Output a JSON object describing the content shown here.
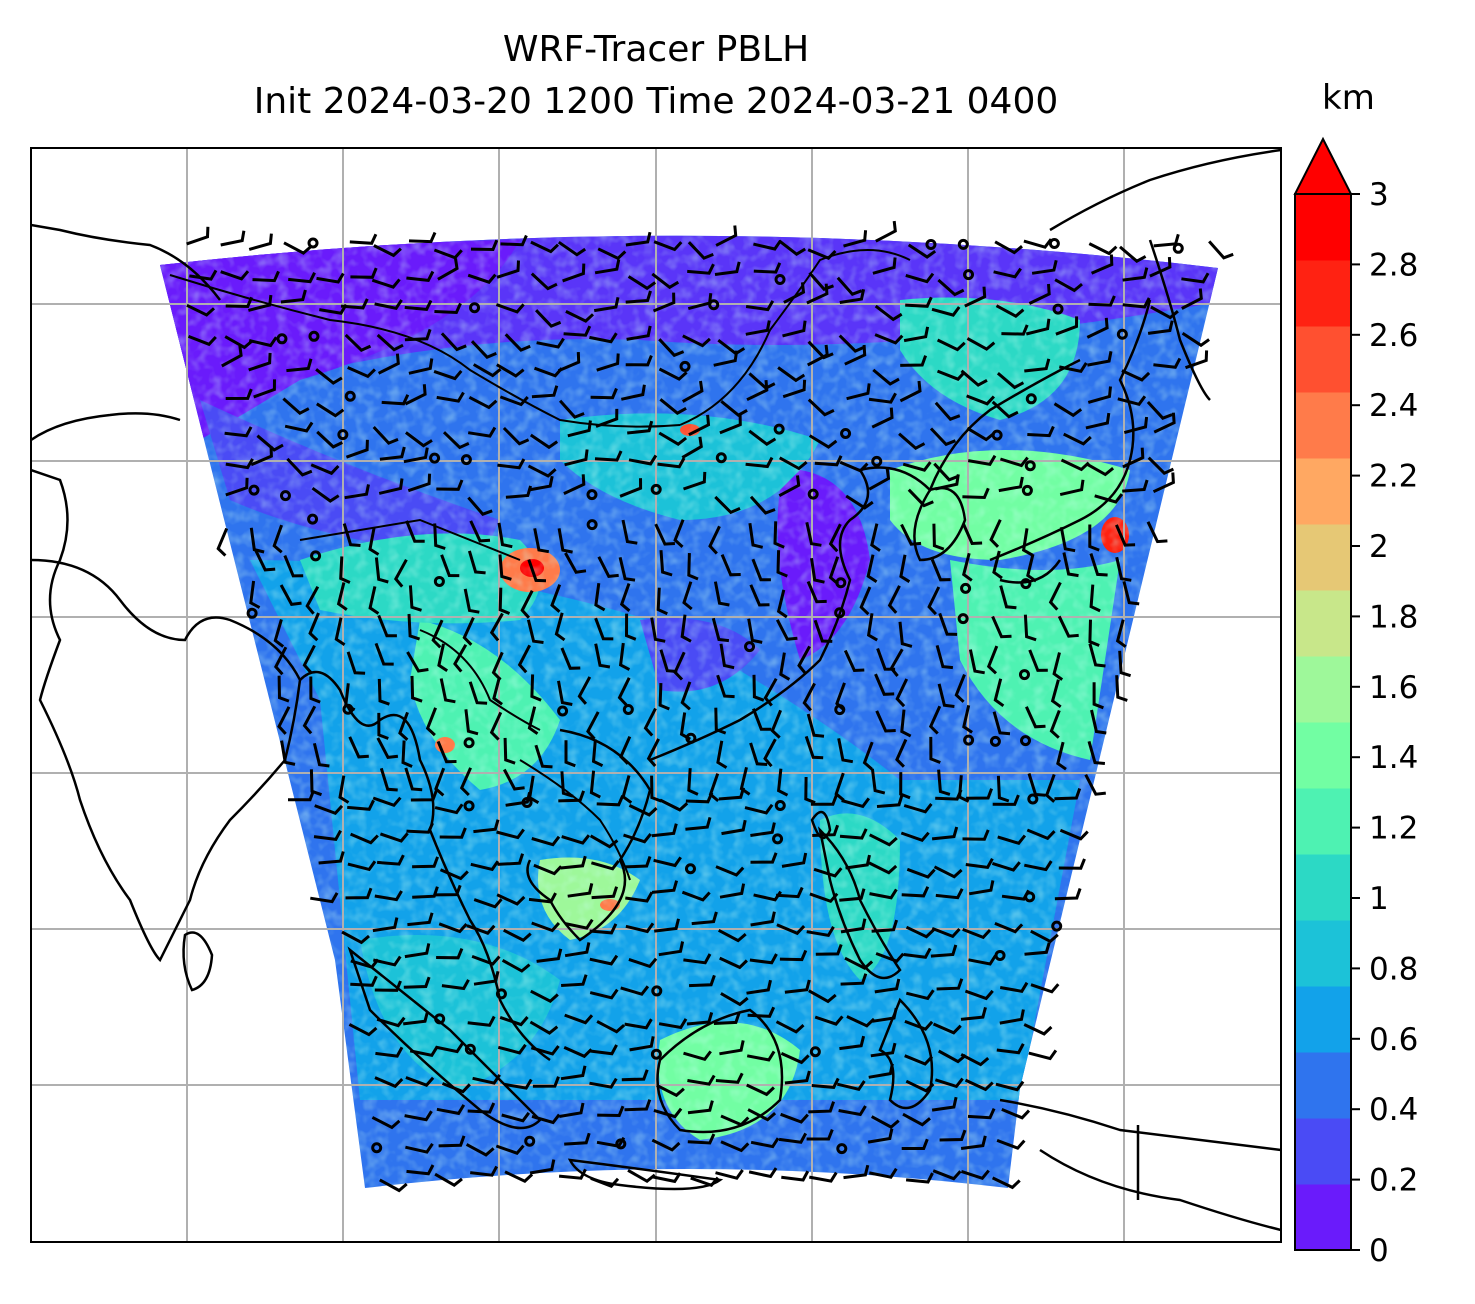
{
  "title": {
    "line1": "WRF-Tracer PBLH",
    "line2": "Init 2024-03-20 1200 Time 2024-03-21 0400"
  },
  "colorbar": {
    "unit": "km",
    "ticks": [
      "0",
      "0.2",
      "0.4",
      "0.6",
      "0.8",
      "1",
      "1.2",
      "1.4",
      "1.6",
      "1.8",
      "2",
      "2.2",
      "2.4",
      "2.6",
      "2.8",
      "3"
    ],
    "min": 0,
    "max": 3,
    "step": 0.2,
    "extend": "max",
    "colors": [
      "#6a1bfb",
      "#4a4bf5",
      "#2f74ee",
      "#12a2ea",
      "#1cc2d8",
      "#2cd9c5",
      "#4ef2b2",
      "#72fea3",
      "#9ef89a",
      "#c8e78a",
      "#e6c875",
      "#ffa862",
      "#ff7b4a",
      "#ff5030",
      "#ff2212",
      "#ff0000"
    ]
  },
  "map": {
    "projection": "lambert-conformal",
    "field": "PBLH",
    "gridlines": true,
    "wind_barbs": true,
    "coastlines": true,
    "borders": true
  }
}
